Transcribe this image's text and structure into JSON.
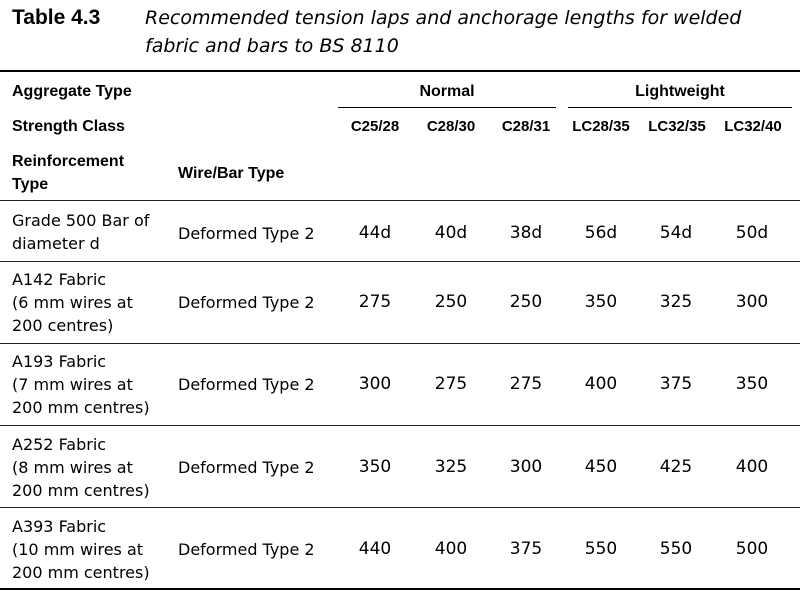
{
  "caption": {
    "number": "Table 4.3",
    "title": "Recommended tension laps and anchorage lengths for welded fabric and bars to BS 8110"
  },
  "headers": {
    "aggregate_type": "Aggregate Type",
    "normal": "Normal",
    "lightweight": "Lightweight",
    "strength_class": "Strength Class",
    "classes": [
      "C25/28",
      "C28/30",
      "C28/31",
      "LC28/35",
      "LC32/35",
      "LC32/40"
    ],
    "reinforcement_type": "Reinforcement Type",
    "wire_bar_type": "Wire/Bar Type"
  },
  "rows": [
    {
      "reinforcement": [
        "Grade 500 Bar of",
        "diameter d"
      ],
      "type": "Deformed Type 2",
      "values": [
        "44d",
        "40d",
        "38d",
        "56d",
        "54d",
        "50d"
      ]
    },
    {
      "reinforcement": [
        "A142 Fabric",
        "(6 mm wires at",
        "200 centres)"
      ],
      "type": "Deformed Type 2",
      "values": [
        "275",
        "250",
        "250",
        "350",
        "325",
        "300"
      ]
    },
    {
      "reinforcement": [
        "A193 Fabric",
        "(7 mm wires at",
        "200 mm centres)"
      ],
      "type": "Deformed Type 2",
      "values": [
        "300",
        "275",
        "275",
        "400",
        "375",
        "350"
      ]
    },
    {
      "reinforcement": [
        "A252 Fabric",
        "(8 mm wires at",
        "200 mm centres)"
      ],
      "type": "Deformed Type 2",
      "values": [
        "350",
        "325",
        "300",
        "450",
        "425",
        "400"
      ]
    },
    {
      "reinforcement": [
        "A393 Fabric",
        "(10 mm wires at",
        "200 mm centres)"
      ],
      "type": "Deformed Type 2",
      "values": [
        "440",
        "400",
        "375",
        "550",
        "550",
        "500"
      ]
    }
  ]
}
